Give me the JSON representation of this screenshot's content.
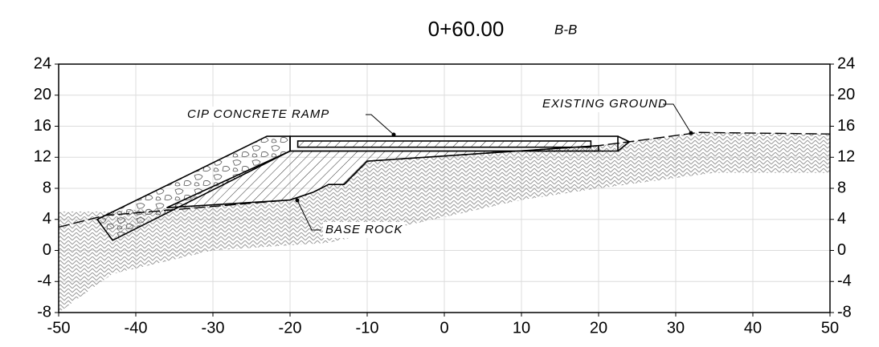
{
  "chart_data": {
    "type": "line",
    "title": "0+60.00",
    "subtitle": "B-B",
    "annotations": [
      "CIP CONCRETE RAMP",
      "EXISTING GROUND",
      "BASE ROCK"
    ],
    "xlim": [
      -50,
      50
    ],
    "xticks": [
      -50,
      -40,
      -30,
      -20,
      -10,
      0,
      10,
      20,
      30,
      40,
      50
    ],
    "ylim": [
      -8,
      24
    ],
    "yticks": [
      -8,
      -4,
      0,
      4,
      8,
      12,
      16,
      20,
      24
    ],
    "y2lim": [
      -8,
      24
    ],
    "y2ticks": [
      -8,
      -4,
      0,
      4,
      8,
      12,
      16,
      20,
      24
    ],
    "grid": true,
    "series": [
      {
        "x": [
          -50,
          -44,
          -20,
          -17,
          -15,
          -13,
          -10,
          20,
          24,
          33,
          50,
          50,
          35,
          20,
          10,
          -15,
          -30,
          -43,
          -50
        ],
        "values": [
          5,
          5,
          6.5,
          7.5,
          8.5,
          8.5,
          11.5,
          13.5,
          14,
          15.2,
          15,
          10,
          10,
          8,
          6.5,
          1,
          0,
          -3,
          -8
        ],
        "closed": true,
        "fill": "soil",
        "color": "#9a9a9a",
        "dash": false
      },
      {
        "x": [
          -45,
          -23,
          -20,
          -20,
          -43
        ],
        "values": [
          4,
          14.7,
          14.7,
          12.8,
          1.3
        ],
        "closed": true,
        "fill": "riprap",
        "color": "#000000",
        "dash": false
      },
      {
        "x": [
          -36,
          -20,
          20,
          20,
          -10,
          -13,
          -15,
          -17,
          -20
        ],
        "values": [
          5.5,
          12.8,
          12.8,
          13.5,
          11.5,
          8.5,
          8.5,
          7.5,
          6.5
        ],
        "closed": true,
        "fill": "hatch",
        "color": "#000000",
        "dash": false
      },
      {
        "x": [
          -20,
          22.5,
          22.5,
          -20
        ],
        "values": [
          14.7,
          14.7,
          12.8,
          12.8
        ],
        "closed": true,
        "fill": "none",
        "color": "#000000",
        "dash": false
      },
      {
        "x": [
          -19,
          19,
          19,
          -19
        ],
        "values": [
          14.1,
          14.1,
          13.3,
          13.3
        ],
        "closed": true,
        "fill": "hatch",
        "color": "#000000",
        "dash": false
      },
      {
        "x": [
          22.5,
          24,
          22.5
        ],
        "values": [
          14.7,
          14,
          12.8
        ],
        "closed": false,
        "fill": "none",
        "color": "#000000",
        "dash": false
      },
      {
        "x": [
          -50,
          -44,
          -20,
          -17,
          -15,
          -13,
          -10,
          20,
          24,
          33,
          50
        ],
        "values": [
          3,
          4.5,
          6.5,
          7.5,
          8.5,
          8.5,
          11.5,
          13.5,
          14,
          15.2,
          15
        ],
        "closed": false,
        "fill": "none",
        "color": "#000000",
        "dash": true
      }
    ]
  }
}
